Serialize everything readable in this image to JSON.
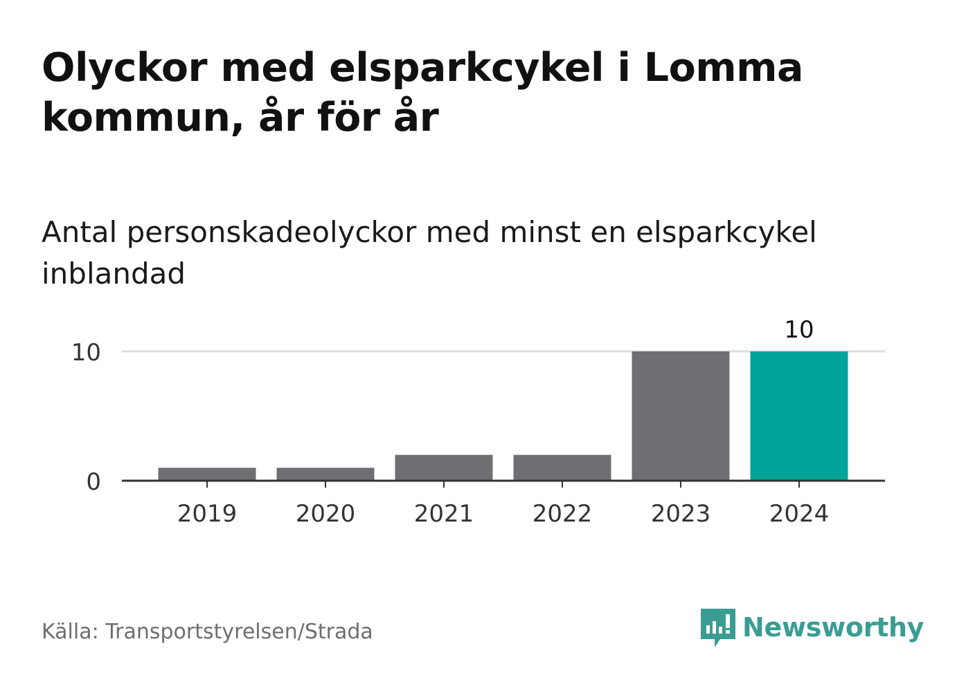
{
  "title": "Olyckor med elsparkcykel i Lomma kommun, år för år",
  "subtitle": "Antal personskadeolyckor med minst en elsparkcykel inblandad",
  "source": "Källa: Transportstyrelsen/Strada",
  "brand": {
    "name": "Newsworthy",
    "icon": "newsworthy-logo-icon",
    "color": "#3a9d93"
  },
  "colors": {
    "bar": "#6f6e73",
    "highlight": "#00a499",
    "grid": "#dddddd",
    "axis": "#333333"
  },
  "chart_data": {
    "type": "bar",
    "categories": [
      "2019",
      "2020",
      "2021",
      "2022",
      "2023",
      "2024"
    ],
    "values": [
      1,
      1,
      2,
      2,
      10,
      10
    ],
    "ylim": [
      0,
      10
    ],
    "yticks": [
      0,
      10
    ],
    "grid": true,
    "highlight_index": 5,
    "data_labels": [
      {
        "index": 5,
        "text": "10"
      }
    ],
    "title": "",
    "xlabel": "",
    "ylabel": ""
  }
}
